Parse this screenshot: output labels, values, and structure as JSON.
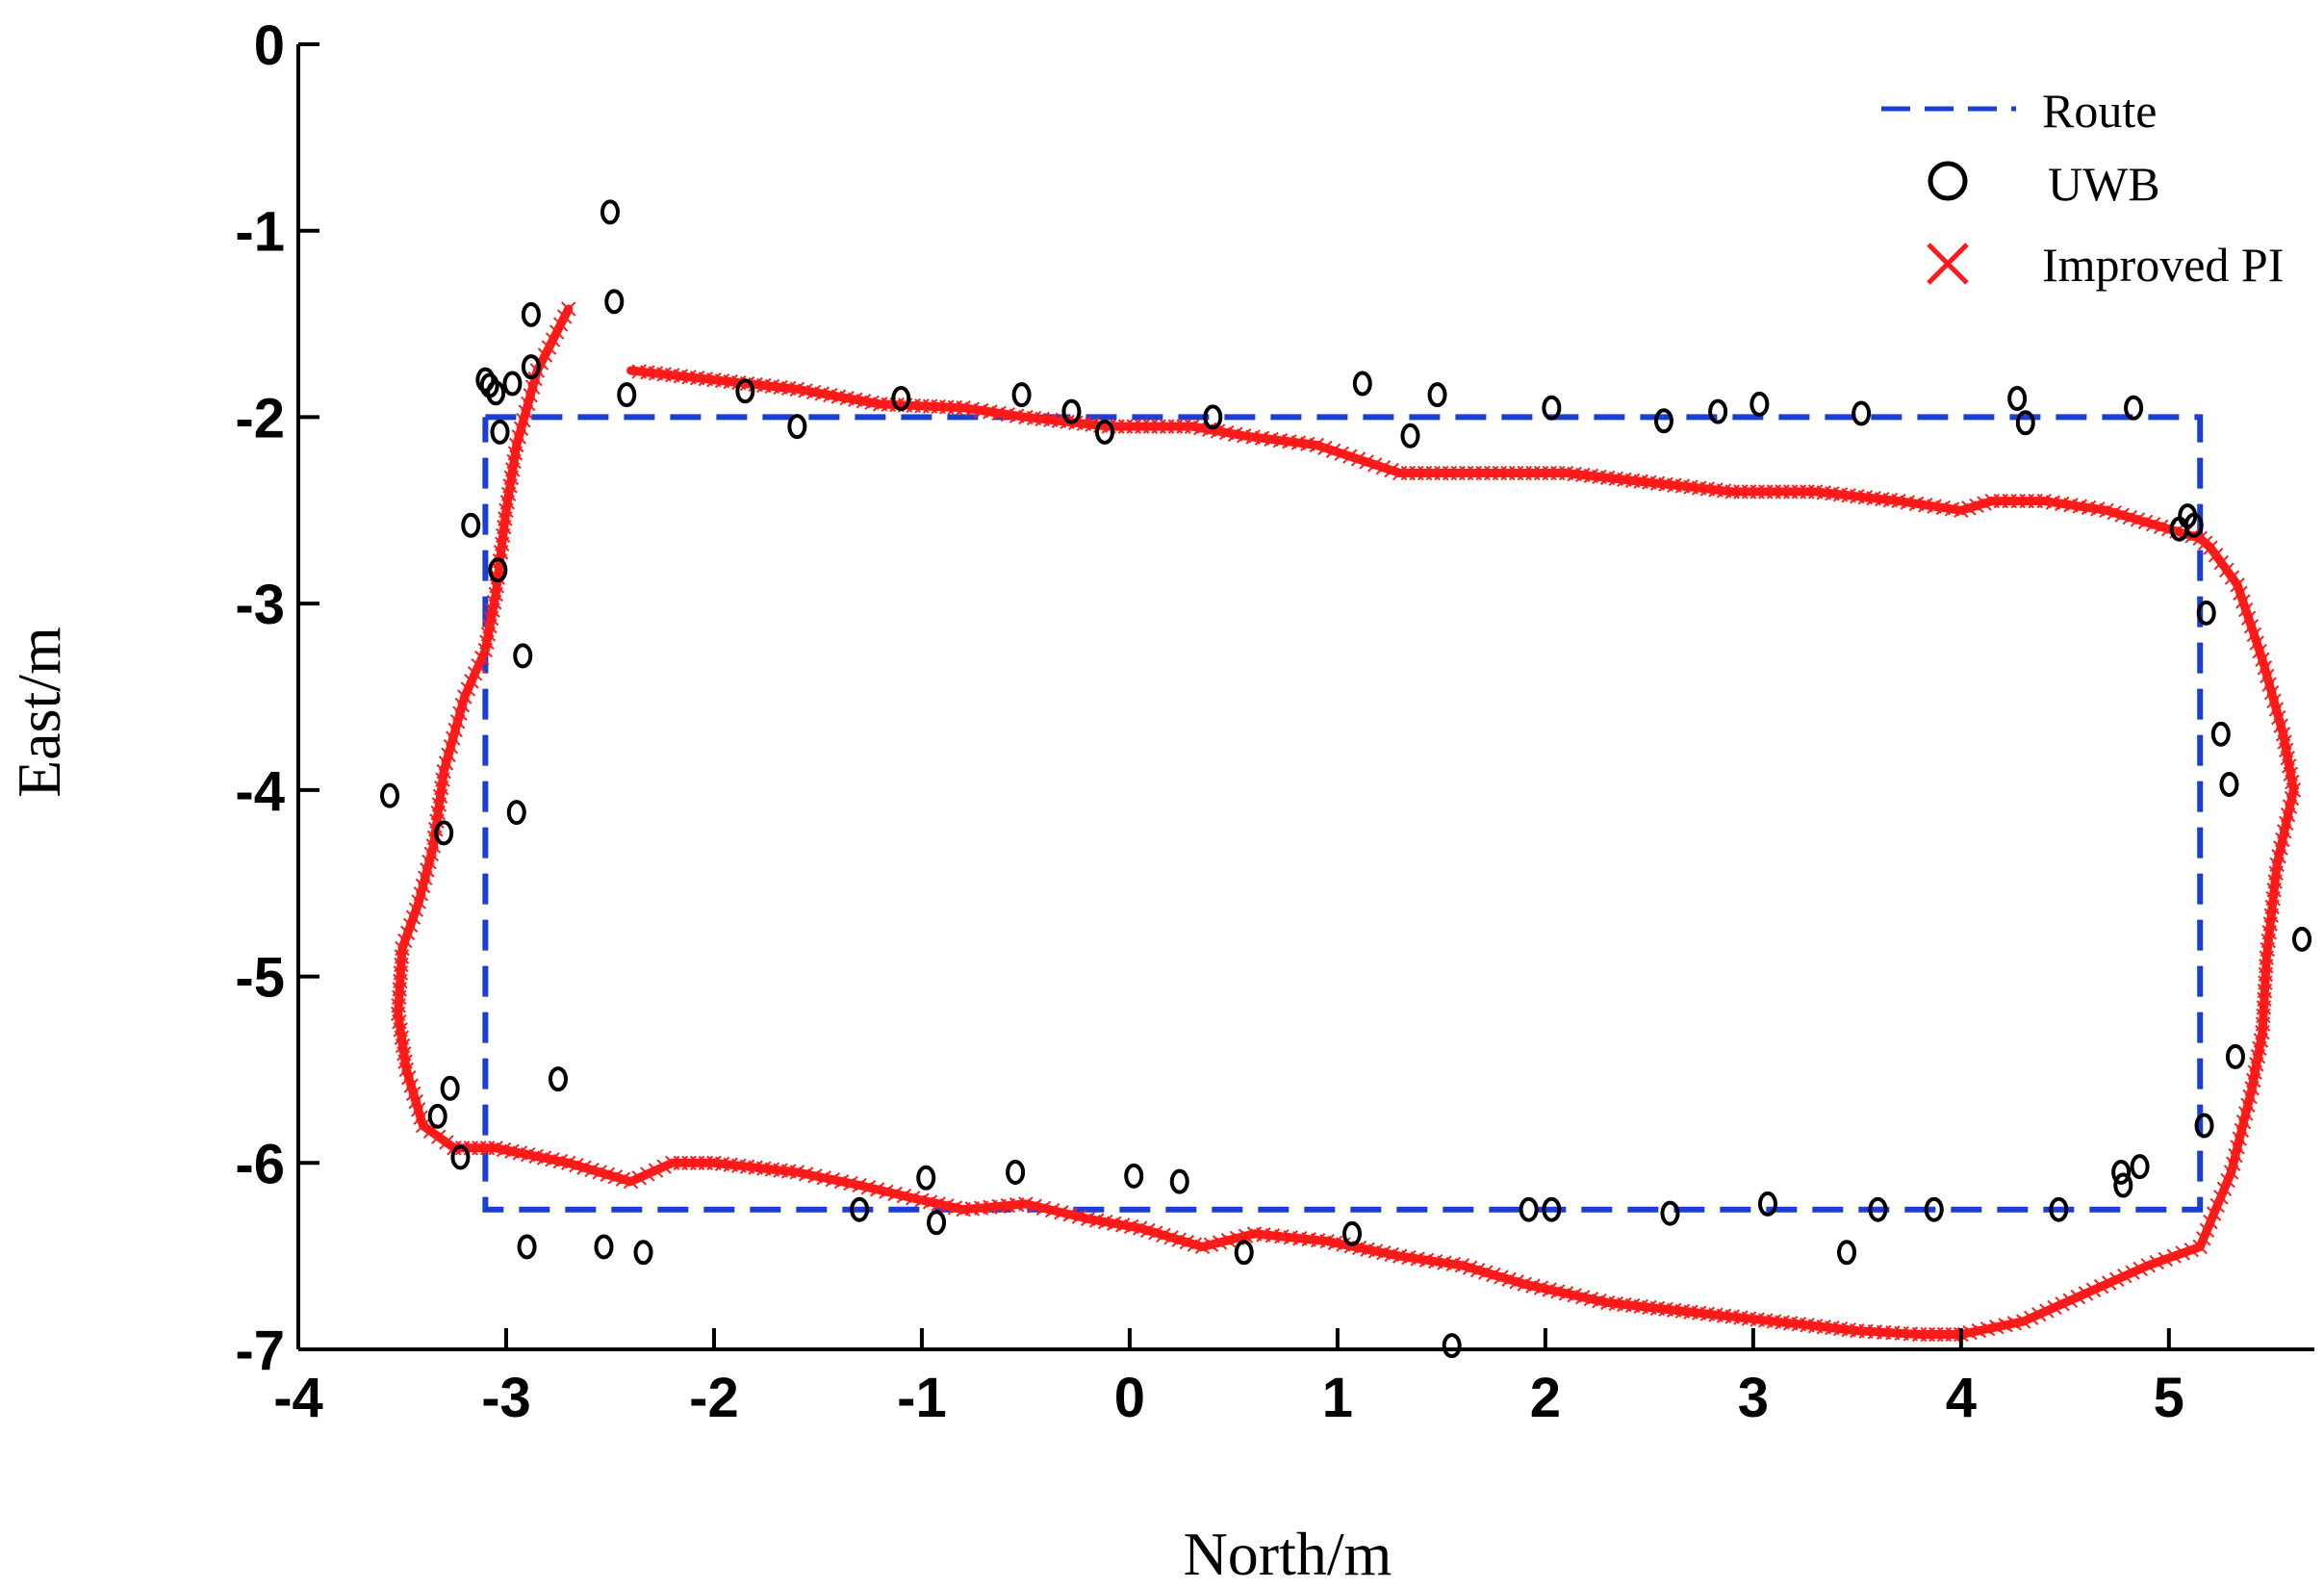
{
  "chart_data": {
    "type": "scatter",
    "title": "",
    "xlabel": "North/m",
    "ylabel": "East/m",
    "xlim": [
      -4,
      5.7
    ],
    "ylim": [
      -7,
      0
    ],
    "xticks": [
      -4,
      -3,
      -2,
      -1,
      0,
      1,
      2,
      3,
      4,
      5
    ],
    "xtick_labels": [
      "-4",
      "-3",
      "-2",
      "-1",
      "0",
      "1",
      "2",
      "3",
      "4",
      "5"
    ],
    "yticks": [
      0,
      -1,
      -2,
      -3,
      -4,
      -5,
      -6,
      -7
    ],
    "ytick_labels": [
      "0",
      "-1",
      "-2",
      "-3",
      "-4",
      "-5",
      "-6",
      "-7"
    ],
    "legend_position": "top-right",
    "series": [
      {
        "name": "Route",
        "style": "dashed-line",
        "color": "#1a3fd6",
        "x": [
          -3.1,
          5.15,
          5.15,
          -3.1,
          -3.1
        ],
        "y": [
          -2.0,
          -2.0,
          -6.25,
          -6.25,
          -2.0
        ]
      },
      {
        "name": "UWB",
        "style": "open-circle",
        "color": "#000000",
        "x": [
          -2.5,
          -2.48,
          -2.88,
          -3.1,
          -3.08,
          -3.05,
          -2.97,
          -2.88,
          -2.42,
          -3.03,
          -1.85,
          -1.6,
          -1.1,
          -0.52,
          -0.28,
          -0.12,
          0.4,
          1.12,
          1.35,
          1.48,
          2.03,
          2.57,
          2.83,
          3.03,
          3.52,
          4.27,
          4.31,
          4.83,
          -3.17,
          -3.04,
          -2.92,
          -3.56,
          -2.95,
          -3.3,
          -3.27,
          -3.33,
          -3.22,
          -2.75,
          -2.9,
          -2.53,
          -2.34,
          -1.3,
          -0.98,
          -0.93,
          -0.55,
          0.02,
          0.24,
          0.55,
          1.07,
          1.55,
          1.92,
          2.03,
          2.6,
          3.07,
          3.45,
          3.6,
          3.87,
          4.47,
          4.77,
          4.78,
          4.86,
          5.05,
          5.09,
          5.12,
          5.18,
          5.25,
          5.29,
          5.32,
          5.17,
          5.64
        ],
        "y": [
          -0.9,
          -1.38,
          -1.45,
          -1.8,
          -1.83,
          -1.87,
          -1.82,
          -1.73,
          -1.88,
          -2.08,
          -1.86,
          -2.05,
          -1.9,
          -1.88,
          -1.97,
          -2.08,
          -2.0,
          -1.82,
          -2.1,
          -1.88,
          -1.95,
          -2.02,
          -1.97,
          -1.93,
          -1.98,
          -1.9,
          -2.03,
          -1.95,
          -2.58,
          -2.82,
          -3.28,
          -4.03,
          -4.12,
          -4.23,
          -5.6,
          -5.75,
          -5.97,
          -5.55,
          -6.45,
          -6.45,
          -6.48,
          -6.25,
          -6.08,
          -6.32,
          -6.05,
          -6.07,
          -6.1,
          -6.48,
          -6.38,
          -6.98,
          -6.25,
          -6.25,
          -6.27,
          -6.22,
          -6.48,
          -6.25,
          -6.25,
          -6.25,
          -6.05,
          -6.12,
          -6.02,
          -2.6,
          -2.53,
          -2.58,
          -3.05,
          -3.7,
          -3.97,
          -5.43,
          -5.8,
          -4.8
        ]
      },
      {
        "name": "Improved PI",
        "style": "x-marker-dense",
        "color": "#ff1a1a",
        "x": [
          -2.7,
          -2.85,
          -2.95,
          -3.0,
          -3.05,
          -3.1,
          -3.2,
          -3.3,
          -3.35,
          -3.42,
          -3.5,
          -3.52,
          -3.48,
          -3.4,
          -3.25,
          -3.05,
          -2.7,
          -2.4,
          -2.2,
          -2.0,
          -1.6,
          -1.3,
          -1.0,
          -0.8,
          -0.5,
          -0.2,
          0.05,
          0.35,
          0.6,
          0.95,
          1.3,
          1.6,
          1.9,
          2.3,
          2.7,
          3.1,
          3.5,
          3.8,
          4.0,
          4.3,
          4.6,
          4.9,
          5.15,
          5.3,
          5.4,
          5.45,
          5.47,
          5.52,
          5.6,
          5.55,
          5.45,
          5.33,
          5.2,
          5.15,
          5.0,
          4.7,
          4.4,
          4.15,
          4.0,
          3.7,
          3.3,
          2.9,
          2.5,
          2.1,
          1.7,
          1.3,
          0.9,
          0.55,
          0.3,
          -0.1,
          -0.5,
          -0.8,
          -1.2,
          -1.6,
          -2.0,
          -2.4
        ],
        "y": [
          -1.42,
          -1.75,
          -2.15,
          -2.5,
          -2.95,
          -3.25,
          -3.5,
          -3.9,
          -4.3,
          -4.6,
          -4.85,
          -5.2,
          -5.5,
          -5.8,
          -5.92,
          -5.92,
          -6.0,
          -6.1,
          -6.0,
          -6.0,
          -6.05,
          -6.12,
          -6.2,
          -6.25,
          -6.22,
          -6.3,
          -6.35,
          -6.45,
          -6.38,
          -6.42,
          -6.5,
          -6.55,
          -6.65,
          -6.75,
          -6.8,
          -6.85,
          -6.9,
          -6.92,
          -6.92,
          -6.85,
          -6.7,
          -6.55,
          -6.45,
          -6.05,
          -5.6,
          -5.3,
          -4.9,
          -4.4,
          -4.0,
          -3.7,
          -3.3,
          -2.9,
          -2.7,
          -2.65,
          -2.6,
          -2.5,
          -2.45,
          -2.45,
          -2.5,
          -2.45,
          -2.4,
          -2.4,
          -2.35,
          -2.3,
          -2.3,
          -2.3,
          -2.15,
          -2.1,
          -2.05,
          -2.05,
          -2.0,
          -1.95,
          -1.93,
          -1.85,
          -1.8,
          -1.75
        ]
      }
    ]
  }
}
